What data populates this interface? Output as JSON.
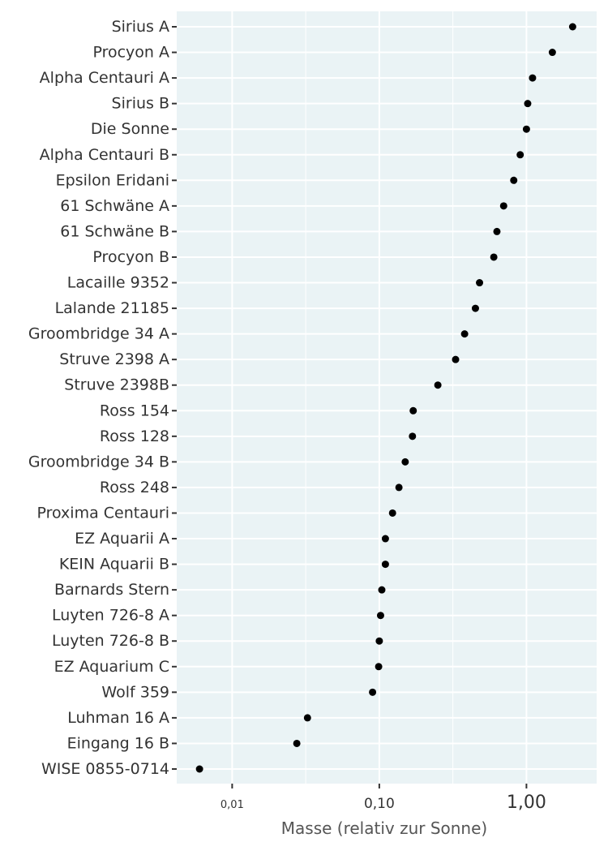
{
  "chart_data": {
    "type": "scatter",
    "title": "",
    "xlabel": "Masse (relativ zur Sonne)",
    "ylabel": "",
    "x_scale": "log10",
    "xlim": [
      0.0042,
      3.0
    ],
    "x_ticks": [
      0.01,
      0.1,
      1.0
    ],
    "x_tick_labels": [
      "0,01",
      "0,10",
      "1,00"
    ],
    "grid": true,
    "legend": "none",
    "colors": {
      "panel": "#eaf3f5",
      "grid": "#ffffff",
      "point": "#000000",
      "text": "#333333",
      "axis_title": "#555555"
    },
    "points": [
      {
        "label": "Sirius A",
        "x": 2.06
      },
      {
        "label": "Procyon A",
        "x": 1.5
      },
      {
        "label": "Alpha Centauri A",
        "x": 1.1
      },
      {
        "label": "Sirius B",
        "x": 1.02
      },
      {
        "label": "Die Sonne",
        "x": 1.0
      },
      {
        "label": "Alpha Centauri B",
        "x": 0.907
      },
      {
        "label": "Epsilon Eridani",
        "x": 0.82
      },
      {
        "label": "61 Schwäne A",
        "x": 0.7
      },
      {
        "label": "61 Schwäne B",
        "x": 0.63
      },
      {
        "label": "Procyon B",
        "x": 0.6
      },
      {
        "label": "Lacaille 9352",
        "x": 0.48
      },
      {
        "label": "Lalande 21185",
        "x": 0.45
      },
      {
        "label": "Groombridge 34 A",
        "x": 0.38
      },
      {
        "label": "Struve 2398 A",
        "x": 0.33
      },
      {
        "label": "Struve 2398B",
        "x": 0.25
      },
      {
        "label": "Ross 154",
        "x": 0.17
      },
      {
        "label": "Ross 128",
        "x": 0.168
      },
      {
        "label": "Groombridge 34 B",
        "x": 0.15
      },
      {
        "label": "Ross 248",
        "x": 0.136
      },
      {
        "label": "Proxima Centauri",
        "x": 0.123
      },
      {
        "label": "EZ Aquarii A",
        "x": 0.11
      },
      {
        "label": "KEIN Aquarii B",
        "x": 0.11
      },
      {
        "label": "Barnards Stern",
        "x": 0.104
      },
      {
        "label": "Luyten 726-8 A",
        "x": 0.102
      },
      {
        "label": "Luyten 726-8 B",
        "x": 0.1
      },
      {
        "label": "EZ Aquarium C",
        "x": 0.099
      },
      {
        "label": "Wolf 359",
        "x": 0.09
      },
      {
        "label": "Luhman 16 A",
        "x": 0.0325
      },
      {
        "label": "Eingang 16 B",
        "x": 0.0275
      },
      {
        "label": "WISE 0855-0714",
        "x": 0.006
      }
    ]
  }
}
